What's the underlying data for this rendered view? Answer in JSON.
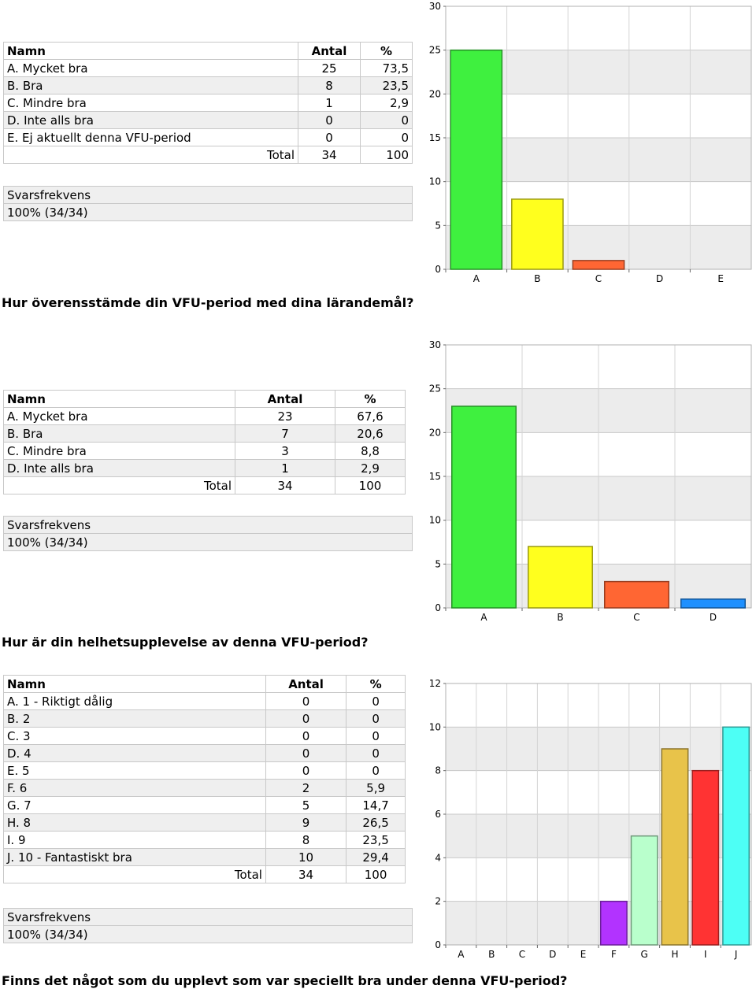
{
  "sections": [
    {
      "table": {
        "headers": [
          "Namn",
          "Antal",
          "%"
        ],
        "rows": [
          [
            "A. Mycket bra",
            "25",
            "73,5"
          ],
          [
            "B. Bra",
            "8",
            "23,5"
          ],
          [
            "C. Mindre bra",
            "1",
            "2,9"
          ],
          [
            "D. Inte alls bra",
            "0",
            "0"
          ],
          [
            "E. Ej aktuellt denna VFU-period",
            "0",
            "0"
          ]
        ],
        "total": [
          "Total",
          "34",
          "100"
        ]
      },
      "freq": {
        "label": "Svarsfrekvens",
        "value": "100% (34/34)"
      },
      "question": "Hur överensstämde din VFU-period med dina lärandemål?"
    },
    {
      "table": {
        "headers": [
          "Namn",
          "Antal",
          "%"
        ],
        "rows": [
          [
            "A. Mycket bra",
            "23",
            "67,6"
          ],
          [
            "B. Bra",
            "7",
            "20,6"
          ],
          [
            "C. Mindre bra",
            "3",
            "8,8"
          ],
          [
            "D. Inte alls bra",
            "1",
            "2,9"
          ]
        ],
        "total": [
          "Total",
          "34",
          "100"
        ]
      },
      "freq": {
        "label": "Svarsfrekvens",
        "value": "100% (34/34)"
      },
      "question": "Hur är din helhetsupplevelse av denna VFU-period?"
    },
    {
      "table": {
        "headers": [
          "Namn",
          "Antal",
          "%"
        ],
        "rows": [
          [
            "A. 1 - Riktigt dålig",
            "0",
            "0"
          ],
          [
            "B. 2",
            "0",
            "0"
          ],
          [
            "C. 3",
            "0",
            "0"
          ],
          [
            "D. 4",
            "0",
            "0"
          ],
          [
            "E. 5",
            "0",
            "0"
          ],
          [
            "F. 6",
            "2",
            "5,9"
          ],
          [
            "G. 7",
            "5",
            "14,7"
          ],
          [
            "H. 8",
            "9",
            "26,5"
          ],
          [
            "I. 9",
            "8",
            "23,5"
          ],
          [
            "J. 10 - Fantastiskt bra",
            "10",
            "29,4"
          ]
        ],
        "total": [
          "Total",
          "34",
          "100"
        ]
      },
      "freq": {
        "label": "Svarsfrekvens",
        "value": "100% (34/34)"
      },
      "question": "Finns det något som du upplevt som var speciellt bra under denna VFU-period?"
    }
  ],
  "chart_data": [
    {
      "type": "bar",
      "categories": [
        "A",
        "B",
        "C",
        "D",
        "E"
      ],
      "values": [
        25,
        8,
        1,
        0,
        0
      ],
      "ylim": [
        0,
        30
      ],
      "yticks": [
        0,
        5,
        10,
        15,
        20,
        25,
        30
      ],
      "ytick_labels": [
        "0",
        "5",
        "10",
        "15",
        "20",
        "25",
        "30"
      ],
      "colors": [
        "#3ff03f",
        "#ffff1e",
        "#ff6633",
        "#1e90ff",
        "#999999"
      ],
      "grid": true
    },
    {
      "type": "bar",
      "categories": [
        "A",
        "B",
        "C",
        "D"
      ],
      "values": [
        23,
        7,
        3,
        1
      ],
      "ylim": [
        0,
        30
      ],
      "yticks": [
        0,
        5,
        10,
        15,
        20,
        25,
        30
      ],
      "ytick_labels": [
        "0",
        "5",
        "10",
        "15",
        "20",
        "25",
        "30"
      ],
      "colors": [
        "#3ff03f",
        "#ffff1e",
        "#ff6633",
        "#1e90ff"
      ],
      "grid": true
    },
    {
      "type": "bar",
      "categories": [
        "A",
        "B",
        "C",
        "D",
        "E",
        "F",
        "G",
        "H",
        "I",
        "J"
      ],
      "values": [
        0,
        0,
        0,
        0,
        0,
        2,
        5,
        9,
        8,
        10
      ],
      "ylim": [
        0,
        12
      ],
      "yticks": [
        0,
        2,
        4,
        6,
        8,
        10,
        12
      ],
      "ytick_labels": [
        "0",
        "2",
        "4",
        "6",
        "8",
        "10",
        "12"
      ],
      "colors": [
        "#3ff03f",
        "#ffff1e",
        "#ff6633",
        "#1e90ff",
        "#999999",
        "#b233ff",
        "#b9ffcc",
        "#e8c34a",
        "#ff3333",
        "#4dfff5"
      ],
      "grid": true
    }
  ]
}
